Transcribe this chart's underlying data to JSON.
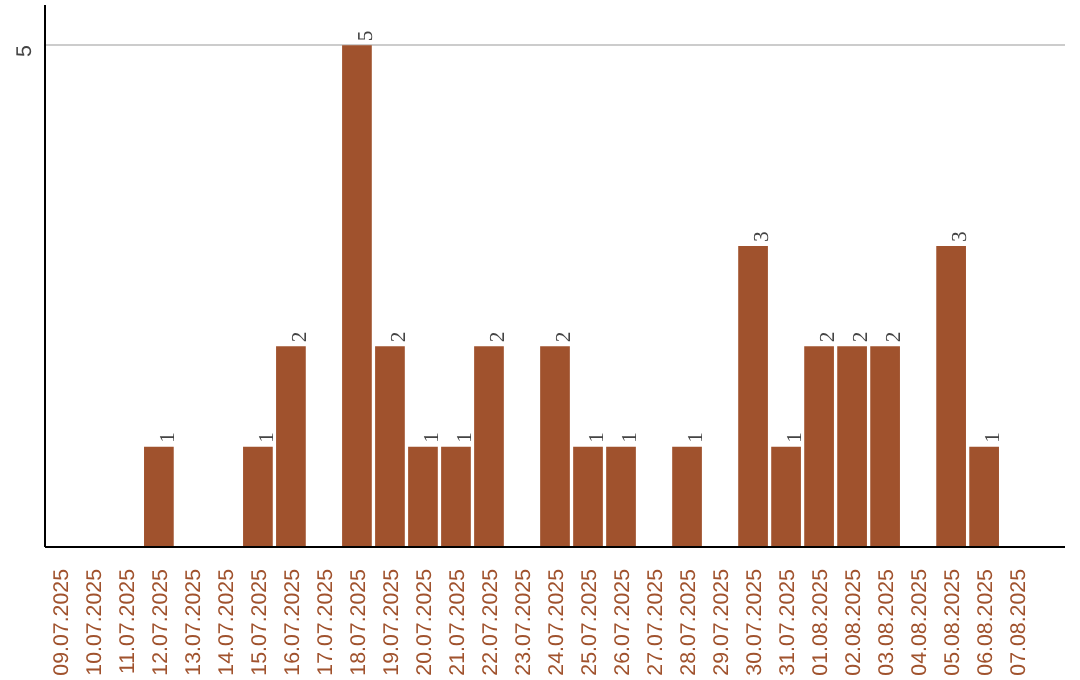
{
  "chart_data": {
    "type": "bar",
    "categories": [
      "09.07.2025",
      "10.07.2025",
      "11.07.2025",
      "12.07.2025",
      "13.07.2025",
      "14.07.2025",
      "15.07.2025",
      "16.07.2025",
      "17.07.2025",
      "18.07.2025",
      "19.07.2025",
      "20.07.2025",
      "21.07.2025",
      "22.07.2025",
      "23.07.2025",
      "24.07.2025",
      "25.07.2025",
      "26.07.2025",
      "27.07.2025",
      "28.07.2025",
      "29.07.2025",
      "30.07.2025",
      "31.07.2025",
      "01.08.2025",
      "02.08.2025",
      "03.08.2025",
      "04.08.2025",
      "05.08.2025",
      "06.08.2025",
      "07.08.2025"
    ],
    "values": [
      0,
      0,
      0,
      1,
      0,
      0,
      1,
      2,
      0,
      5,
      2,
      1,
      1,
      2,
      0,
      2,
      1,
      1,
      0,
      1,
      0,
      3,
      1,
      2,
      2,
      2,
      0,
      3,
      1,
      0
    ],
    "value_labels": [
      null,
      null,
      null,
      "1",
      null,
      null,
      "1",
      "2",
      null,
      "5",
      "2",
      "1",
      "1",
      "2",
      null,
      "2",
      "1",
      "1",
      null,
      "1",
      null,
      "3",
      "1",
      "2",
      "2",
      "2",
      null,
      "3",
      "1",
      null
    ],
    "color": "#a0522d",
    "ylim": [
      0,
      5.4
    ],
    "yticks": [
      5
    ],
    "grid": "y"
  }
}
